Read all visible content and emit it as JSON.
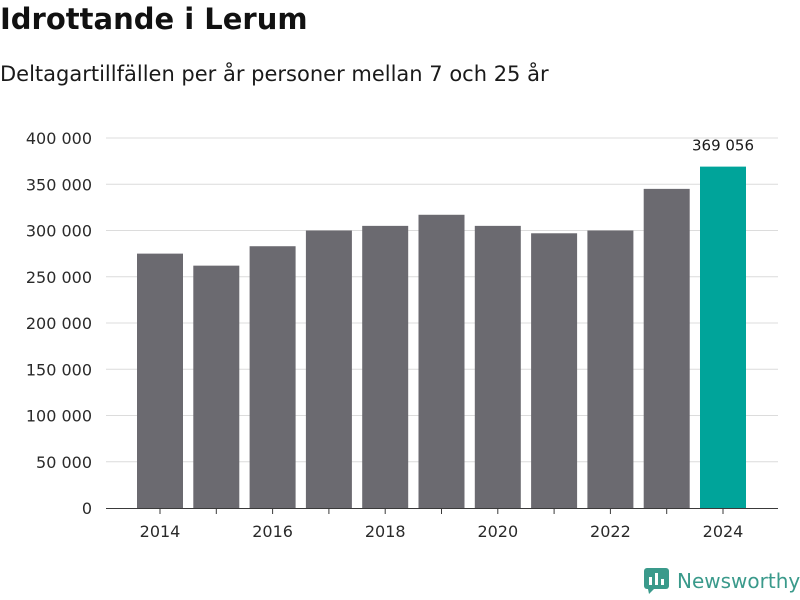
{
  "header": {
    "title": "Idrottande i Lerum",
    "subtitle": "Deltagartillfällen per år personer mellan 7 och 25 år"
  },
  "brand": {
    "name": "Newsworthy",
    "icon": "newsworthy-logo-icon"
  },
  "colors": {
    "bar": "#6b6a70",
    "highlight": "#00a49a",
    "grid": "#dcdcdc",
    "brand": "#3a9a8b"
  },
  "chart_data": {
    "type": "bar",
    "title": "Idrottande i Lerum",
    "subtitle": "Deltagartillfällen per år personer mellan 7 och 25 år",
    "categories": [
      2014,
      2015,
      2016,
      2017,
      2018,
      2019,
      2020,
      2021,
      2022,
      2023,
      2024
    ],
    "values": [
      275000,
      262000,
      283000,
      300000,
      305000,
      317000,
      305000,
      297000,
      300000,
      345000,
      369056
    ],
    "highlight_index": 10,
    "data_labels": [
      {
        "index": 10,
        "text": "369 056"
      }
    ],
    "x_tick_labels": [
      "2014",
      "2016",
      "2018",
      "2020",
      "2022",
      "2024"
    ],
    "y_tick_labels": [
      "0",
      "50 000",
      "100 000",
      "150 000",
      "200 000",
      "250 000",
      "300 000",
      "350 000",
      "400 000"
    ],
    "y_ticks": [
      0,
      50000,
      100000,
      150000,
      200000,
      250000,
      300000,
      350000,
      400000
    ],
    "ylim": [
      0,
      400000
    ],
    "grid": true,
    "legend": false
  }
}
